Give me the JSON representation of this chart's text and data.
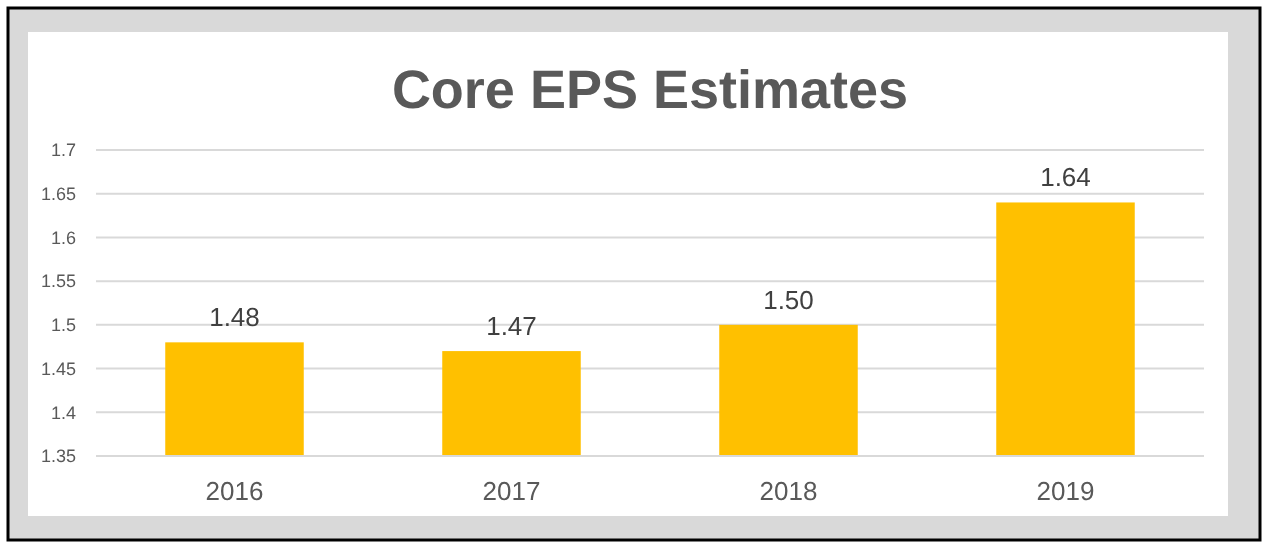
{
  "chart_data": {
    "type": "bar",
    "title": "Core EPS Estimates",
    "categories": [
      "2016",
      "2017",
      "2018",
      "2019"
    ],
    "values": [
      1.48,
      1.47,
      1.5,
      1.64
    ],
    "value_labels": [
      "1.48",
      "1.47",
      "1.50",
      "1.64"
    ],
    "color": "#ffc000",
    "ylim": [
      1.35,
      1.7
    ],
    "yticks": [
      1.35,
      1.4,
      1.45,
      1.5,
      1.55,
      1.6,
      1.65,
      1.7
    ],
    "grid": "y"
  }
}
